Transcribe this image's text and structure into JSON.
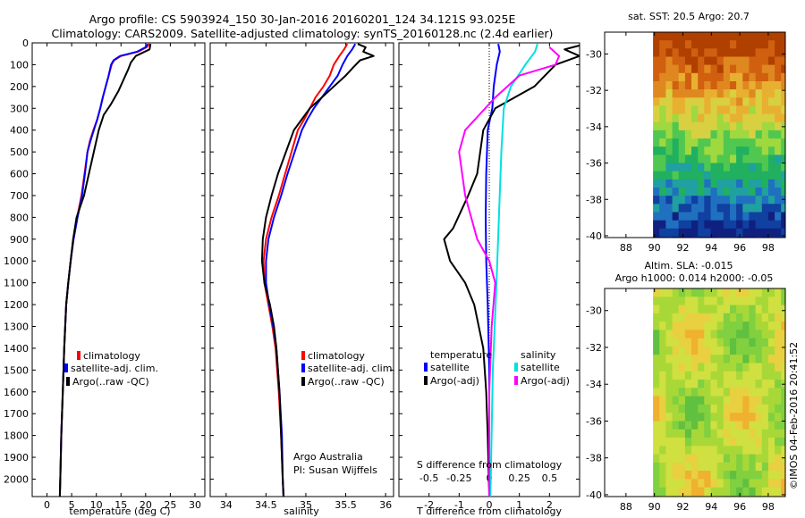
{
  "title": {
    "line1": "Argo profile: CS 5903924_150 30-Jan-2016 20160201_124 34.121S 93.025E",
    "line2": "Climatology: CARS2009. Satellite-adjusted climatology: synTS_20160128.nc (2.4d earlier)"
  },
  "colors": {
    "climatology": "#ff0000",
    "satellite": "#0000ff",
    "argo": "#000000",
    "sal_satellite": "#00e0e0",
    "sal_argo": "#ff00ff"
  },
  "depth_axis": {
    "ylim": [
      0,
      2080
    ],
    "ticks": [
      0,
      100,
      200,
      300,
      400,
      500,
      600,
      700,
      800,
      900,
      1000,
      1100,
      1200,
      1300,
      1400,
      1500,
      1600,
      1700,
      1800,
      1900,
      2000
    ]
  },
  "chart_data": [
    {
      "id": "temperature",
      "type": "line",
      "xlabel": "temperature (deg C)",
      "xlim": [
        -3,
        32
      ],
      "xticks": [
        0,
        5,
        10,
        15,
        20,
        25,
        30
      ],
      "xticklabels": [
        "0",
        "5",
        "10",
        "15",
        "20",
        "25",
        "30"
      ],
      "legend": {
        "placement": "lower-center",
        "entries": [
          "climatology",
          "satellite-adj. clim.",
          "Argo(..raw -QC)"
        ]
      },
      "series": [
        {
          "name": "climatology",
          "color": "#ff0000",
          "points": [
            [
              20.8,
              5
            ],
            [
              20.2,
              20
            ],
            [
              18.5,
              40
            ],
            [
              15,
              60
            ],
            [
              13.6,
              80
            ],
            [
              13.1,
              100
            ],
            [
              12.5,
              150
            ],
            [
              11.9,
              200
            ],
            [
              11.3,
              250
            ],
            [
              10.8,
              300
            ],
            [
              10.2,
              350
            ],
            [
              9.4,
              400
            ],
            [
              8.7,
              450
            ],
            [
              8.2,
              500
            ],
            [
              7.6,
              600
            ],
            [
              7,
              700
            ],
            [
              6.1,
              800
            ],
            [
              5.3,
              900
            ],
            [
              4.8,
              1000
            ],
            [
              4.3,
              1100
            ],
            [
              3.9,
              1200
            ],
            [
              3.5,
              1400
            ],
            [
              3.2,
              1600
            ],
            [
              2.9,
              1800
            ],
            [
              2.7,
              2000
            ],
            [
              2.6,
              2080
            ]
          ]
        },
        {
          "name": "satellite-adj. clim.",
          "color": "#0000ff",
          "points": [
            [
              20.4,
              5
            ],
            [
              20,
              20
            ],
            [
              18.3,
              40
            ],
            [
              14.8,
              60
            ],
            [
              13.5,
              80
            ],
            [
              13,
              100
            ],
            [
              12.5,
              150
            ],
            [
              11.9,
              200
            ],
            [
              11.3,
              250
            ],
            [
              10.8,
              300
            ],
            [
              10.2,
              350
            ],
            [
              9.5,
              400
            ],
            [
              8.8,
              450
            ],
            [
              8.2,
              500
            ],
            [
              7.7,
              600
            ],
            [
              7.1,
              700
            ],
            [
              6.2,
              800
            ],
            [
              5.4,
              900
            ],
            [
              4.8,
              1000
            ],
            [
              4.3,
              1100
            ],
            [
              3.9,
              1200
            ],
            [
              3.5,
              1400
            ],
            [
              3.2,
              1600
            ],
            [
              2.9,
              1800
            ],
            [
              2.7,
              2000
            ],
            [
              2.6,
              2080
            ]
          ]
        },
        {
          "name": "Argo(..raw -QC)",
          "color": "#000000",
          "points": [
            [
              21,
              5
            ],
            [
              20.8,
              30
            ],
            [
              18,
              60
            ],
            [
              17,
              90
            ],
            [
              16.5,
              120
            ],
            [
              15.5,
              170
            ],
            [
              14.5,
              220
            ],
            [
              13,
              280
            ],
            [
              11.5,
              330
            ],
            [
              10.5,
              400
            ],
            [
              9.5,
              500
            ],
            [
              8.5,
              600
            ],
            [
              7.5,
              700
            ],
            [
              6,
              800
            ],
            [
              5.3,
              900
            ],
            [
              4.8,
              1000
            ],
            [
              4.3,
              1100
            ],
            [
              3.9,
              1200
            ],
            [
              3.5,
              1400
            ],
            [
              3.2,
              1600
            ],
            [
              2.9,
              1800
            ],
            [
              2.7,
              2000
            ],
            [
              2.6,
              2080
            ]
          ]
        }
      ]
    },
    {
      "id": "salinity",
      "type": "line",
      "xlabel": "salinity",
      "xlim": [
        33.8,
        36.1
      ],
      "xticks": [
        34,
        34.5,
        35,
        35.5,
        36
      ],
      "xticklabels": [
        "34",
        "34.5",
        "35",
        "35.5",
        "36"
      ],
      "legend": {
        "placement": "lower-center",
        "entries": [
          "climatology",
          "satellite-adj. clim.",
          "Argo(..raw -QC)"
        ]
      },
      "annotation": {
        "line1": "Argo Australia",
        "line2": "PI: Susan Wijffels"
      },
      "series": [
        {
          "name": "climatology",
          "color": "#ff0000",
          "points": [
            [
              35.52,
              5
            ],
            [
              35.48,
              30
            ],
            [
              35.42,
              60
            ],
            [
              35.35,
              100
            ],
            [
              35.3,
              150
            ],
            [
              35.22,
              200
            ],
            [
              35.12,
              250
            ],
            [
              35.05,
              300
            ],
            [
              34.98,
              350
            ],
            [
              34.9,
              400
            ],
            [
              34.82,
              500
            ],
            [
              34.74,
              600
            ],
            [
              34.66,
              700
            ],
            [
              34.57,
              800
            ],
            [
              34.5,
              900
            ],
            [
              34.47,
              1000
            ],
            [
              34.48,
              1100
            ],
            [
              34.53,
              1200
            ],
            [
              34.58,
              1300
            ],
            [
              34.62,
              1400
            ],
            [
              34.66,
              1600
            ],
            [
              34.69,
              1800
            ],
            [
              34.71,
              2000
            ],
            [
              34.72,
              2080
            ]
          ]
        },
        {
          "name": "satellite-adj. clim.",
          "color": "#0000ff",
          "points": [
            [
              35.62,
              5
            ],
            [
              35.58,
              30
            ],
            [
              35.52,
              60
            ],
            [
              35.46,
              100
            ],
            [
              35.4,
              150
            ],
            [
              35.3,
              200
            ],
            [
              35.2,
              250
            ],
            [
              35.1,
              300
            ],
            [
              35.02,
              350
            ],
            [
              34.95,
              400
            ],
            [
              34.86,
              500
            ],
            [
              34.77,
              600
            ],
            [
              34.69,
              700
            ],
            [
              34.6,
              800
            ],
            [
              34.53,
              900
            ],
            [
              34.5,
              1000
            ],
            [
              34.5,
              1100
            ],
            [
              34.54,
              1200
            ],
            [
              34.59,
              1300
            ],
            [
              34.63,
              1400
            ],
            [
              34.67,
              1600
            ],
            [
              34.7,
              1800
            ],
            [
              34.71,
              2000
            ],
            [
              34.72,
              2080
            ]
          ]
        },
        {
          "name": "Argo(..raw -QC)",
          "color": "#000000",
          "points": [
            [
              35.65,
              5
            ],
            [
              35.75,
              20
            ],
            [
              35.72,
              40
            ],
            [
              35.85,
              60
            ],
            [
              35.68,
              80
            ],
            [
              35.6,
              110
            ],
            [
              35.5,
              150
            ],
            [
              35.35,
              200
            ],
            [
              35.2,
              250
            ],
            [
              35.05,
              300
            ],
            [
              34.95,
              350
            ],
            [
              34.85,
              400
            ],
            [
              34.75,
              500
            ],
            [
              34.65,
              600
            ],
            [
              34.57,
              700
            ],
            [
              34.5,
              800
            ],
            [
              34.46,
              900
            ],
            [
              34.45,
              1000
            ],
            [
              34.48,
              1100
            ],
            [
              34.55,
              1200
            ],
            [
              34.6,
              1300
            ],
            [
              34.63,
              1400
            ],
            [
              34.67,
              1600
            ],
            [
              34.69,
              1800
            ],
            [
              34.71,
              2000
            ],
            [
              34.72,
              2080
            ]
          ]
        }
      ]
    },
    {
      "id": "differences",
      "type": "line",
      "xlabel": "T difference from climatology",
      "xlabel_top": "S difference from climatology",
      "xlim": [
        -3,
        3
      ],
      "xticks": [
        -2,
        -1,
        0,
        1,
        2
      ],
      "xticklabels": [
        "-2",
        "-1",
        "0",
        "1",
        "2"
      ],
      "sticks": [
        -0.5,
        -0.25,
        0,
        0.25,
        0.5
      ],
      "sticklabels": [
        "-0.5",
        "-0.25",
        "0",
        "0.25",
        "0.5"
      ],
      "s_scale": 4,
      "legend": {
        "placement": "lower",
        "temperature_header": "temperature",
        "salinity_header": "salinity",
        "entries": [
          "satellite",
          "Argo(-adj)",
          "satellite",
          "Argo(-adj)"
        ]
      },
      "series": [
        {
          "name": "T satellite",
          "color": "#0000ff",
          "points": [
            [
              0.3,
              5
            ],
            [
              0.35,
              40
            ],
            [
              0.25,
              100
            ],
            [
              0.15,
              200
            ],
            [
              0.1,
              300
            ],
            [
              -0.05,
              400
            ],
            [
              -0.1,
              600
            ],
            [
              -0.12,
              800
            ],
            [
              -0.1,
              1000
            ],
            [
              -0.05,
              1200
            ],
            [
              0,
              1500
            ],
            [
              0,
              2080
            ]
          ]
        },
        {
          "name": "T Argo(-adj)",
          "color": "#000000",
          "points": [
            [
              3.2,
              5
            ],
            [
              2.5,
              30
            ],
            [
              3,
              60
            ],
            [
              2.2,
              100
            ],
            [
              1.5,
              200
            ],
            [
              0.2,
              300
            ],
            [
              -0.2,
              400
            ],
            [
              -0.3,
              500
            ],
            [
              -0.4,
              600
            ],
            [
              -0.7,
              700
            ],
            [
              -1.2,
              850
            ],
            [
              -1.5,
              900
            ],
            [
              -1.3,
              1000
            ],
            [
              -0.8,
              1100
            ],
            [
              -0.5,
              1200
            ],
            [
              -0.2,
              1400
            ],
            [
              -0.1,
              1600
            ],
            [
              -0.05,
              1800
            ],
            [
              0,
              2080
            ]
          ]
        },
        {
          "name": "S satellite",
          "color": "#00e0e0",
          "points": [
            [
              0.4,
              5
            ],
            [
              0.38,
              40
            ],
            [
              0.3,
              100
            ],
            [
              0.18,
              200
            ],
            [
              0.12,
              300
            ],
            [
              0.1,
              500
            ],
            [
              0.08,
              800
            ],
            [
              0.06,
              1100
            ],
            [
              0.03,
              1500
            ],
            [
              0.01,
              2080
            ]
          ]
        },
        {
          "name": "S Argo(-adj)",
          "color": "#ff00ff",
          "points": [
            [
              0.5,
              20
            ],
            [
              0.58,
              60
            ],
            [
              0.55,
              100
            ],
            [
              0.25,
              150
            ],
            [
              0.05,
              250
            ],
            [
              -0.2,
              400
            ],
            [
              -0.25,
              500
            ],
            [
              -0.2,
              700
            ],
            [
              -0.1,
              900
            ],
            [
              0,
              1000
            ],
            [
              0.05,
              1100
            ],
            [
              0.02,
              1300
            ],
            [
              0,
              1600
            ],
            [
              0,
              2080
            ]
          ]
        }
      ]
    },
    {
      "id": "sst_map",
      "type": "heatmap",
      "title": "sat. SST: 20.5 Argo: 20.7",
      "xlim": [
        86.5,
        99.2
      ],
      "ylim": [
        -40.1,
        -28.8
      ],
      "xticks": [
        88,
        90,
        92,
        94,
        96,
        98
      ],
      "yticks": [
        -30,
        -32,
        -34,
        -36,
        -38,
        -40
      ],
      "data_lon_range": [
        89.9,
        99.2
      ],
      "gradient": "warm (orange) in north to cold (dark blue) in south"
    },
    {
      "id": "sla_map",
      "type": "heatmap",
      "title1": "Altim. SLA: -0.015",
      "title2": "Argo h1000: 0.014 h2000: -0.05",
      "xlim": [
        86.5,
        99.2
      ],
      "ylim": [
        -40.1,
        -28.8
      ],
      "xticks": [
        88,
        90,
        92,
        94,
        96,
        98
      ],
      "yticks": [
        -30,
        -32,
        -34,
        -36,
        -38,
        -40
      ],
      "data_lon_range": [
        89.9,
        99.2
      ],
      "gradient": "green to yellow/orange patches"
    }
  ],
  "credit": "©IMOS 04-Feb-2016 20:41:52"
}
